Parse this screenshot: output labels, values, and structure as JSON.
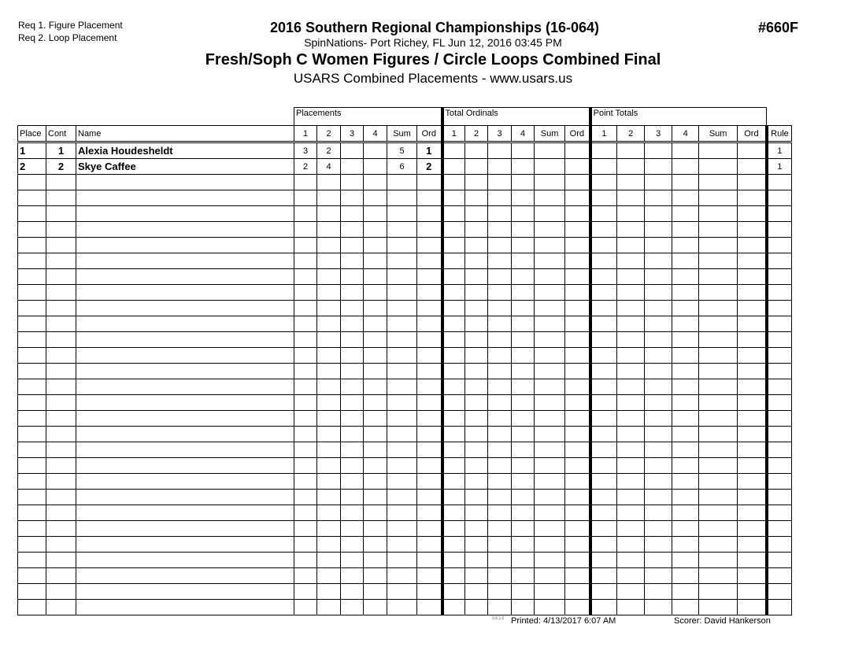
{
  "requirements": [
    "Req  1.  Figure Placement",
    "Req  2.  Loop Placement"
  ],
  "header": {
    "title": "2016 Southern Regional Championships (16-064)",
    "venue": "SpinNations- Port Richey, FL  Jun 12, 2016  03:45 PM",
    "event": "Fresh/Soph C Women Figures / Circle Loops Combined Final",
    "subtitle": "USARS Combined Placements - www.usars.us",
    "event_number": "#660F"
  },
  "table": {
    "groups": [
      "Placements",
      "Total Ordinals",
      "Point Totals"
    ],
    "columns": [
      "Place",
      "Cont",
      "Name",
      "1",
      "2",
      "3",
      "4",
      "Sum",
      "Ord",
      "1",
      "2",
      "3",
      "4",
      "Sum",
      "Ord",
      "1",
      "2",
      "3",
      "4",
      "Sum",
      "Ord",
      "Rule"
    ],
    "rows": [
      [
        "1",
        "1",
        "Alexia Houdesheldt",
        "3",
        "2",
        "",
        "",
        "5",
        "1",
        "",
        "",
        "",
        "",
        "",
        "",
        "",
        "",
        "",
        "",
        "",
        "",
        "1"
      ],
      [
        "2",
        "2",
        "Skye Caffee",
        "2",
        "4",
        "",
        "",
        "6",
        "2",
        "",
        "",
        "",
        "",
        "",
        "",
        "",
        "",
        "",
        "",
        "",
        "",
        "1"
      ]
    ]
  },
  "footer": {
    "version": "3.8.1.6",
    "printed": "Printed:  4/13/2017  6:07 AM",
    "scorer": "Scorer:    David Hankerson"
  }
}
